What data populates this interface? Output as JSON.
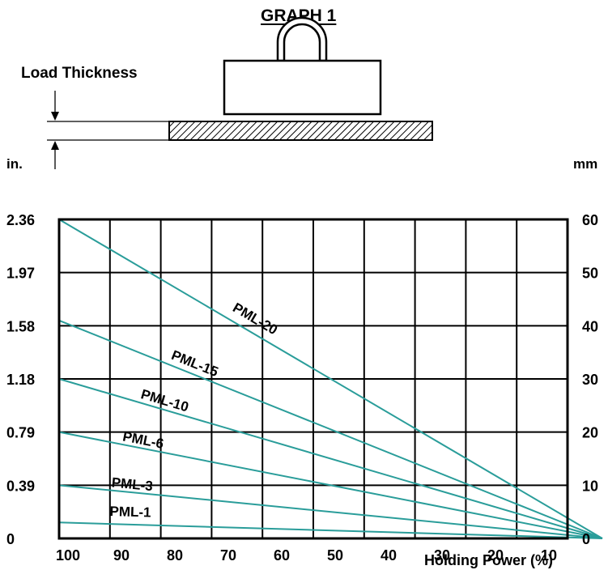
{
  "header": {
    "title": "GRAPH 1",
    "load_thickness_label": "Load Thickness",
    "left_unit": "in.",
    "right_unit": "mm"
  },
  "colors": {
    "series": "#2a9d9a",
    "grid": "#000000",
    "hatch": "#000000"
  },
  "chart_data": {
    "type": "line",
    "title": "GRAPH 1",
    "xlabel": "Holding Power (%)",
    "ylabel": "in.",
    "ylabel_right": "mm",
    "x_ticks": [
      "100",
      "90",
      "80",
      "70",
      "60",
      "50",
      "40",
      "30",
      "20",
      "10"
    ],
    "xlim": [
      100,
      0
    ],
    "x_reversed": true,
    "y_ticks_left": [
      "0",
      "0.39",
      "0.79",
      "1.18",
      "1.58",
      "1.97",
      "2.36"
    ],
    "y_ticks_right": [
      "0",
      "10",
      "20",
      "30",
      "40",
      "50",
      "60"
    ],
    "ylim": [
      0,
      60
    ],
    "grid": true,
    "series": [
      {
        "name": "PML-20",
        "x": [
          100,
          0
        ],
        "y": [
          60,
          0
        ]
      },
      {
        "name": "PML-15",
        "x": [
          100,
          0
        ],
        "y": [
          41,
          0
        ]
      },
      {
        "name": "PML-10",
        "x": [
          100,
          0
        ],
        "y": [
          30,
          0
        ]
      },
      {
        "name": "PML-6",
        "x": [
          100,
          0
        ],
        "y": [
          20,
          0
        ]
      },
      {
        "name": "PML-3",
        "x": [
          100,
          0
        ],
        "y": [
          10,
          0
        ]
      },
      {
        "name": "PML-1",
        "x": [
          100,
          0
        ],
        "y": [
          3,
          0
        ]
      }
    ]
  }
}
